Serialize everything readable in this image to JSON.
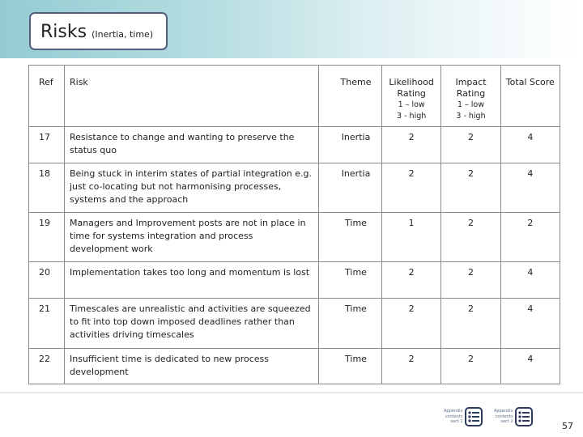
{
  "slide": {
    "title": "Risks",
    "subtitle": "(Inertia, time)",
    "page_number": "57"
  },
  "table": {
    "headers": {
      "ref": "Ref",
      "risk": "Risk",
      "theme": "Theme",
      "likelihood": "Likelihood Rating",
      "likelihood_scale_low": "1 – low",
      "likelihood_scale_high": "3 - high",
      "impact": "Impact Rating",
      "impact_scale_low": "1 – low",
      "impact_scale_high": "3 - high",
      "total": "Total Score"
    },
    "rows": [
      {
        "ref": "17",
        "risk": "Resistance to change and wanting to preserve the status quo",
        "theme": "Inertia",
        "likelihood": "2",
        "impact": "2",
        "total": "4"
      },
      {
        "ref": "18",
        "risk": "Being stuck in interim states of partial integration e.g. just co-locating but not harmonising processes, systems and the approach",
        "theme": "Inertia",
        "likelihood": "2",
        "impact": "2",
        "total": "4"
      },
      {
        "ref": "19",
        "risk": "Managers and Improvement posts are not in place in time for systems integration and process development work",
        "theme": "Time",
        "likelihood": "1",
        "impact": "2",
        "total": "2"
      },
      {
        "ref": "20",
        "risk": "Implementation takes  too long and momentum is lost",
        "theme": "Time",
        "likelihood": "2",
        "impact": "2",
        "total": "4"
      },
      {
        "ref": "21",
        "risk": "Timescales are unrealistic and activities are squeezed to fit into top down imposed deadlines rather than activities driving timescales",
        "theme": "Time",
        "likelihood": "2",
        "impact": "2",
        "total": "4"
      },
      {
        "ref": "22",
        "risk": "Insufficient time is dedicated to new process development",
        "theme": "Time",
        "likelihood": "2",
        "impact": "2",
        "total": "4"
      }
    ]
  },
  "footer": {
    "nav_1": {
      "line1": "Appendix",
      "line2": "contents",
      "line3": "sect 1",
      "icon": "list-icon"
    },
    "nav_2": {
      "line1": "Appendix",
      "line2": "contents",
      "line3": "sect 2",
      "icon": "list-icon"
    }
  },
  "colors": {
    "header_band_start": "#93ccd2",
    "title_border": "#555d7e",
    "table_border": "#8a8a8a",
    "nav_icon": "#2d3b5c"
  }
}
